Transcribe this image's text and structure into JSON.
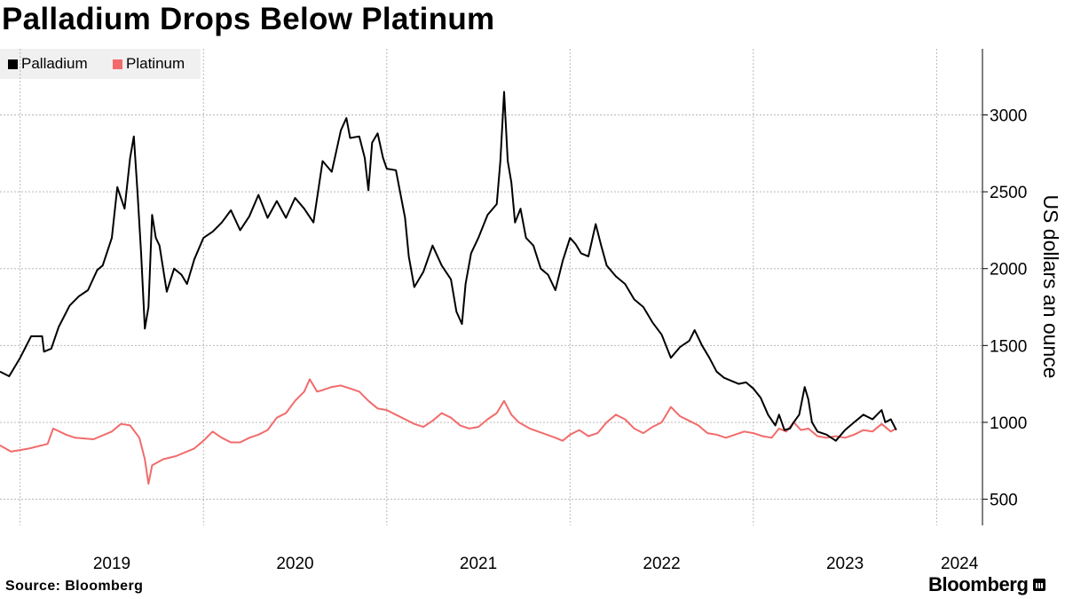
{
  "chart_data": {
    "type": "line",
    "title": "Palladium Drops Below Platinum",
    "ylabel": "US dollars an ounce",
    "xlabel": "",
    "ylim": [
      330,
      3430
    ],
    "yticks": [
      500,
      1000,
      1500,
      2000,
      2500,
      3000
    ],
    "xlim": [
      2018.89,
      2024.25
    ],
    "year_ticks": [
      2019,
      2020,
      2021,
      2022,
      2023,
      2024
    ],
    "x_tick_labels": [
      "2019",
      "2020",
      "2021",
      "2022",
      "2023",
      "2024"
    ],
    "grid": true,
    "legend_position": "top-left",
    "series": [
      {
        "name": "Palladium",
        "color": "#000000",
        "points": [
          [
            2018.89,
            1330
          ],
          [
            2018.94,
            1300
          ],
          [
            2019.0,
            1420
          ],
          [
            2019.06,
            1560
          ],
          [
            2019.12,
            1560
          ],
          [
            2019.13,
            1460
          ],
          [
            2019.17,
            1480
          ],
          [
            2019.21,
            1620
          ],
          [
            2019.27,
            1760
          ],
          [
            2019.32,
            1820
          ],
          [
            2019.37,
            1860
          ],
          [
            2019.42,
            1990
          ],
          [
            2019.45,
            2020
          ],
          [
            2019.5,
            2200
          ],
          [
            2019.53,
            2530
          ],
          [
            2019.57,
            2390
          ],
          [
            2019.6,
            2720
          ],
          [
            2019.62,
            2860
          ],
          [
            2019.64,
            2500
          ],
          [
            2019.66,
            2100
          ],
          [
            2019.68,
            1610
          ],
          [
            2019.7,
            1750
          ],
          [
            2019.72,
            2350
          ],
          [
            2019.74,
            2200
          ],
          [
            2019.76,
            2150
          ],
          [
            2019.78,
            2000
          ],
          [
            2019.8,
            1850
          ],
          [
            2019.84,
            2000
          ],
          [
            2019.88,
            1960
          ],
          [
            2019.91,
            1900
          ],
          [
            2019.95,
            2060
          ],
          [
            2020.0,
            2200
          ],
          [
            2020.05,
            2240
          ],
          [
            2020.1,
            2300
          ],
          [
            2020.15,
            2380
          ],
          [
            2020.2,
            2250
          ],
          [
            2020.25,
            2340
          ],
          [
            2020.3,
            2480
          ],
          [
            2020.35,
            2330
          ],
          [
            2020.4,
            2440
          ],
          [
            2020.45,
            2330
          ],
          [
            2020.5,
            2460
          ],
          [
            2020.55,
            2390
          ],
          [
            2020.6,
            2300
          ],
          [
            2020.65,
            2700
          ],
          [
            2020.7,
            2630
          ],
          [
            2020.75,
            2900
          ],
          [
            2020.78,
            2980
          ],
          [
            2020.8,
            2850
          ],
          [
            2020.85,
            2860
          ],
          [
            2020.88,
            2720
          ],
          [
            2020.9,
            2510
          ],
          [
            2020.92,
            2820
          ],
          [
            2020.95,
            2880
          ],
          [
            2020.98,
            2720
          ],
          [
            2021.0,
            2650
          ],
          [
            2021.05,
            2640
          ],
          [
            2021.1,
            2330
          ],
          [
            2021.12,
            2080
          ],
          [
            2021.15,
            1880
          ],
          [
            2021.2,
            1980
          ],
          [
            2021.25,
            2150
          ],
          [
            2021.3,
            2020
          ],
          [
            2021.35,
            1930
          ],
          [
            2021.38,
            1720
          ],
          [
            2021.41,
            1640
          ],
          [
            2021.43,
            1900
          ],
          [
            2021.46,
            2100
          ],
          [
            2021.5,
            2200
          ],
          [
            2021.55,
            2350
          ],
          [
            2021.6,
            2420
          ],
          [
            2021.62,
            2700
          ],
          [
            2021.64,
            3150
          ],
          [
            2021.66,
            2700
          ],
          [
            2021.68,
            2560
          ],
          [
            2021.7,
            2300
          ],
          [
            2021.73,
            2390
          ],
          [
            2021.76,
            2200
          ],
          [
            2021.8,
            2150
          ],
          [
            2021.84,
            2000
          ],
          [
            2021.88,
            1960
          ],
          [
            2021.92,
            1860
          ],
          [
            2021.96,
            2050
          ],
          [
            2022.0,
            2200
          ],
          [
            2022.03,
            2160
          ],
          [
            2022.06,
            2100
          ],
          [
            2022.1,
            2080
          ],
          [
            2022.14,
            2290
          ],
          [
            2022.17,
            2150
          ],
          [
            2022.2,
            2020
          ],
          [
            2022.25,
            1950
          ],
          [
            2022.3,
            1900
          ],
          [
            2022.35,
            1800
          ],
          [
            2022.4,
            1750
          ],
          [
            2022.45,
            1650
          ],
          [
            2022.5,
            1570
          ],
          [
            2022.55,
            1420
          ],
          [
            2022.6,
            1490
          ],
          [
            2022.65,
            1530
          ],
          [
            2022.68,
            1600
          ],
          [
            2022.72,
            1500
          ],
          [
            2022.76,
            1420
          ],
          [
            2022.8,
            1330
          ],
          [
            2022.84,
            1290
          ],
          [
            2022.88,
            1270
          ],
          [
            2022.92,
            1250
          ],
          [
            2022.96,
            1260
          ],
          [
            2023.0,
            1220
          ],
          [
            2023.04,
            1160
          ],
          [
            2023.08,
            1050
          ],
          [
            2023.12,
            980
          ],
          [
            2023.14,
            1050
          ],
          [
            2023.17,
            950
          ],
          [
            2023.2,
            960
          ],
          [
            2023.22,
            1000
          ],
          [
            2023.25,
            1050
          ],
          [
            2023.28,
            1230
          ],
          [
            2023.3,
            1150
          ],
          [
            2023.32,
            1000
          ],
          [
            2023.35,
            940
          ],
          [
            2023.4,
            920
          ],
          [
            2023.45,
            880
          ],
          [
            2023.5,
            950
          ],
          [
            2023.55,
            1000
          ],
          [
            2023.6,
            1050
          ],
          [
            2023.65,
            1020
          ],
          [
            2023.7,
            1080
          ],
          [
            2023.72,
            1000
          ],
          [
            2023.75,
            1020
          ],
          [
            2023.78,
            950
          ]
        ]
      },
      {
        "name": "Platinum",
        "color": "#f26b6b",
        "points": [
          [
            2018.89,
            850
          ],
          [
            2018.95,
            810
          ],
          [
            2019.05,
            830
          ],
          [
            2019.15,
            860
          ],
          [
            2019.18,
            960
          ],
          [
            2019.25,
            920
          ],
          [
            2019.3,
            900
          ],
          [
            2019.4,
            890
          ],
          [
            2019.5,
            940
          ],
          [
            2019.55,
            990
          ],
          [
            2019.6,
            980
          ],
          [
            2019.65,
            900
          ],
          [
            2019.68,
            760
          ],
          [
            2019.7,
            600
          ],
          [
            2019.72,
            720
          ],
          [
            2019.78,
            760
          ],
          [
            2019.85,
            780
          ],
          [
            2019.95,
            830
          ],
          [
            2020.0,
            880
          ],
          [
            2020.05,
            940
          ],
          [
            2020.1,
            900
          ],
          [
            2020.15,
            870
          ],
          [
            2020.2,
            870
          ],
          [
            2020.25,
            900
          ],
          [
            2020.3,
            920
          ],
          [
            2020.35,
            950
          ],
          [
            2020.4,
            1030
          ],
          [
            2020.45,
            1060
          ],
          [
            2020.5,
            1140
          ],
          [
            2020.55,
            1200
          ],
          [
            2020.58,
            1280
          ],
          [
            2020.62,
            1200
          ],
          [
            2020.65,
            1210
          ],
          [
            2020.7,
            1230
          ],
          [
            2020.75,
            1240
          ],
          [
            2020.8,
            1220
          ],
          [
            2020.85,
            1200
          ],
          [
            2020.9,
            1140
          ],
          [
            2020.95,
            1090
          ],
          [
            2021.0,
            1080
          ],
          [
            2021.05,
            1050
          ],
          [
            2021.1,
            1020
          ],
          [
            2021.15,
            990
          ],
          [
            2021.2,
            970
          ],
          [
            2021.25,
            1010
          ],
          [
            2021.3,
            1060
          ],
          [
            2021.35,
            1030
          ],
          [
            2021.4,
            980
          ],
          [
            2021.45,
            960
          ],
          [
            2021.5,
            970
          ],
          [
            2021.55,
            1020
          ],
          [
            2021.6,
            1060
          ],
          [
            2021.64,
            1140
          ],
          [
            2021.68,
            1050
          ],
          [
            2021.72,
            1000
          ],
          [
            2021.78,
            960
          ],
          [
            2021.85,
            930
          ],
          [
            2021.92,
            900
          ],
          [
            2021.96,
            880
          ],
          [
            2022.0,
            920
          ],
          [
            2022.05,
            950
          ],
          [
            2022.1,
            910
          ],
          [
            2022.15,
            930
          ],
          [
            2022.2,
            1000
          ],
          [
            2022.25,
            1050
          ],
          [
            2022.3,
            1020
          ],
          [
            2022.35,
            960
          ],
          [
            2022.4,
            930
          ],
          [
            2022.45,
            970
          ],
          [
            2022.5,
            1000
          ],
          [
            2022.55,
            1100
          ],
          [
            2022.6,
            1040
          ],
          [
            2022.65,
            1010
          ],
          [
            2022.7,
            980
          ],
          [
            2022.75,
            930
          ],
          [
            2022.8,
            920
          ],
          [
            2022.85,
            900
          ],
          [
            2022.9,
            920
          ],
          [
            2022.95,
            940
          ],
          [
            2023.0,
            930
          ],
          [
            2023.05,
            910
          ],
          [
            2023.1,
            900
          ],
          [
            2023.14,
            960
          ],
          [
            2023.18,
            940
          ],
          [
            2023.22,
            1000
          ],
          [
            2023.26,
            950
          ],
          [
            2023.3,
            960
          ],
          [
            2023.35,
            910
          ],
          [
            2023.4,
            900
          ],
          [
            2023.45,
            910
          ],
          [
            2023.5,
            900
          ],
          [
            2023.55,
            920
          ],
          [
            2023.6,
            950
          ],
          [
            2023.65,
            940
          ],
          [
            2023.7,
            990
          ],
          [
            2023.75,
            940
          ],
          [
            2023.78,
            960
          ]
        ]
      }
    ]
  },
  "legend": {
    "items": [
      "Palladium",
      "Platinum"
    ]
  },
  "footer": {
    "source": "Source: Bloomberg",
    "brand": "Bloomberg"
  }
}
